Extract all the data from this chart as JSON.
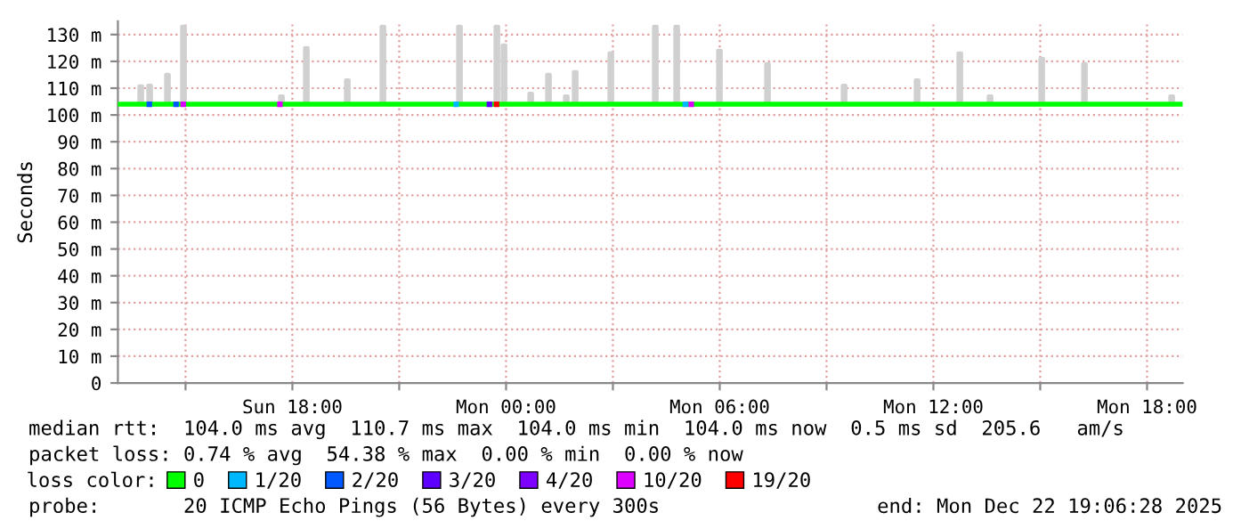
{
  "chart_data": {
    "type": "line",
    "ylabel": "Seconds",
    "legend_title": "loss color:",
    "legend": "bottom",
    "grid": true,
    "line_style": "solid",
    "xlim": [
      "2025-12-21T13:06",
      "2025-12-22T19:00"
    ],
    "xticks": [
      {
        "value": "2025-12-21T15:00",
        "label": null
      },
      {
        "value": "2025-12-21T18:00",
        "label": "Sun 18:00"
      },
      {
        "value": "2025-12-21T21:00",
        "label": null
      },
      {
        "value": "2025-12-22T00:00",
        "label": "Mon 00:00"
      },
      {
        "value": "2025-12-22T03:00",
        "label": null
      },
      {
        "value": "2025-12-22T06:00",
        "label": "Mon 06:00"
      },
      {
        "value": "2025-12-22T09:00",
        "label": null
      },
      {
        "value": "2025-12-22T12:00",
        "label": "Mon 12:00"
      },
      {
        "value": "2025-12-22T15:00",
        "label": null
      },
      {
        "value": "2025-12-22T18:00",
        "label": "Mon 18:00"
      }
    ],
    "ylim": [
      0,
      135
    ],
    "yticks": [
      0,
      {
        "value": 10,
        "label": "10 m"
      },
      {
        "value": 20,
        "label": "20 m"
      },
      {
        "value": 30,
        "label": "30 m"
      },
      {
        "value": 40,
        "label": "40 m"
      },
      {
        "value": 50,
        "label": "50 m"
      },
      {
        "value": 60,
        "label": "60 m"
      },
      {
        "value": 70,
        "label": "70 m"
      },
      {
        "value": 80,
        "label": "80 m"
      },
      {
        "value": 90,
        "label": "90 m"
      },
      {
        "value": 100,
        "label": "100 m"
      },
      {
        "value": 110,
        "label": "110 m"
      },
      {
        "value": 120,
        "label": "120 m"
      },
      {
        "value": 130,
        "label": "130 m"
      }
    ],
    "series": [
      {
        "type": "line",
        "color": "#d0d0d0",
        "x": [
          "2025-12-21T13:42",
          "2025-12-21T13:42",
          "2025-12-21T13:47",
          "2025-12-21T13:47",
          "2025-12-21T13:57",
          "2025-12-21T13:57",
          "2025-12-21T14:02",
          "2025-12-21T14:02",
          "2025-12-21T14:27",
          "2025-12-21T14:27",
          "2025-12-21T14:32",
          "2025-12-21T14:32",
          "2025-12-21T14:54",
          "2025-12-21T14:54",
          "2025-12-21T14:59",
          "2025-12-21T14:59",
          "2025-12-21T17:39",
          "2025-12-21T17:39",
          "2025-12-21T17:44",
          "2025-12-21T17:44",
          "2025-12-21T18:21",
          "2025-12-21T18:21",
          "2025-12-21T18:26",
          "2025-12-21T18:26",
          "2025-12-21T19:30",
          "2025-12-21T19:30",
          "2025-12-21T19:35",
          "2025-12-21T19:35",
          "2025-12-21T20:30",
          "2025-12-21T20:30",
          "2025-12-21T20:35",
          "2025-12-21T20:35",
          "2025-12-21T22:39",
          "2025-12-21T22:39",
          "2025-12-21T22:44",
          "2025-12-21T22:44",
          "2025-12-21T23:42",
          "2025-12-21T23:42",
          "2025-12-21T23:47",
          "2025-12-21T23:47",
          "2025-12-21T23:54",
          "2025-12-21T23:54",
          "2025-12-21T23:59",
          "2025-12-21T23:59",
          "2025-12-22T00:39",
          "2025-12-22T00:39",
          "2025-12-22T00:44",
          "2025-12-22T00:44",
          "2025-12-22T01:09",
          "2025-12-22T01:09",
          "2025-12-22T01:14",
          "2025-12-22T01:14",
          "2025-12-22T01:39",
          "2025-12-22T01:39",
          "2025-12-22T01:44",
          "2025-12-22T01:44",
          "2025-12-22T01:54",
          "2025-12-22T01:54",
          "2025-12-22T01:59",
          "2025-12-22T01:59",
          "2025-12-22T02:54",
          "2025-12-22T02:54",
          "2025-12-22T02:59",
          "2025-12-22T02:59",
          "2025-12-22T04:09",
          "2025-12-22T04:09",
          "2025-12-22T04:14",
          "2025-12-22T04:14",
          "2025-12-22T04:45",
          "2025-12-22T04:45",
          "2025-12-22T04:50",
          "2025-12-22T04:50",
          "2025-12-22T05:57",
          "2025-12-22T05:57",
          "2025-12-22T06:02",
          "2025-12-22T06:02",
          "2025-12-22T07:18",
          "2025-12-22T07:18",
          "2025-12-22T07:23",
          "2025-12-22T07:23",
          "2025-12-22T09:27",
          "2025-12-22T09:27",
          "2025-12-22T09:32",
          "2025-12-22T09:32",
          "2025-12-22T11:30",
          "2025-12-22T11:30",
          "2025-12-22T11:35",
          "2025-12-22T11:35",
          "2025-12-22T12:42",
          "2025-12-22T12:42",
          "2025-12-22T12:47",
          "2025-12-22T12:47",
          "2025-12-22T13:33",
          "2025-12-22T13:33",
          "2025-12-22T13:38",
          "2025-12-22T13:38",
          "2025-12-22T15:00",
          "2025-12-22T15:00",
          "2025-12-22T15:05",
          "2025-12-22T15:05",
          "2025-12-22T16:12",
          "2025-12-22T16:12",
          "2025-12-22T16:17",
          "2025-12-22T16:17",
          "2025-12-22T18:39",
          "2025-12-22T18:39",
          "2025-12-22T18:44",
          "2025-12-22T18:44"
        ],
        "values": [
          104,
          110.7,
          110.7,
          104,
          104,
          111,
          111,
          104,
          104,
          115,
          115,
          104,
          104,
          133,
          133,
          104,
          104,
          107,
          107,
          104,
          104,
          125,
          125,
          104,
          104,
          113,
          113,
          104,
          104,
          133,
          133,
          104,
          104,
          133,
          133,
          104,
          104,
          133,
          133,
          104,
          104,
          126,
          126,
          104,
          104,
          108,
          108,
          104,
          104,
          115,
          115,
          104,
          104,
          107,
          107,
          104,
          104,
          116,
          116,
          104,
          104,
          123,
          123,
          104,
          104,
          133,
          133,
          104,
          104,
          133,
          133,
          104,
          104,
          124,
          124,
          104,
          104,
          119,
          119,
          104,
          104,
          111,
          111,
          104,
          104,
          113,
          113,
          104,
          104,
          123,
          123,
          104,
          104,
          107,
          107,
          104,
          104,
          121,
          121,
          104,
          104,
          119,
          119,
          104,
          104,
          107,
          107,
          104
        ]
      },
      {
        "name": "0",
        "color": "#00ff00",
        "x": [
          "2025-12-21T13:06",
          "2025-12-22T19:00"
        ],
        "values": [
          104,
          104
        ]
      },
      {
        "type": "scatter",
        "name": "1/20",
        "color": "#00b8ff",
        "marker": "square",
        "x": [
          "2025-12-21T22:36",
          "2025-12-22T05:02"
        ],
        "values": [
          104,
          104
        ]
      },
      {
        "type": "scatter",
        "name": "2/20",
        "color": "#0059ff",
        "marker": "square",
        "x": [
          "2025-12-21T13:59",
          "2025-12-21T14:44"
        ],
        "values": [
          104,
          104
        ]
      },
      {
        "type": "scatter",
        "name": "3/20",
        "color": "#5e00ff",
        "marker": "square",
        "x": [
          "2025-12-21T23:32"
        ],
        "values": [
          104
        ]
      },
      {
        "type": "scatter",
        "name": "4/20",
        "color": "#7e00ff",
        "marker": "square"
      },
      {
        "type": "scatter",
        "name": "10/20",
        "color": "#dd00ff",
        "marker": "square",
        "x": [
          "2025-12-21T14:56",
          "2025-12-21T17:39",
          "2025-12-22T05:12"
        ],
        "values": [
          104,
          104,
          104
        ]
      },
      {
        "type": "scatter",
        "name": "19/20",
        "color": "#ff0000",
        "marker": "square",
        "x": [
          "2025-12-21T23:44"
        ],
        "values": [
          104
        ]
      }
    ],
    "annotations": [
      "median rtt:  104.0 ms avg  110.7 ms max  104.0 ms min  104.0 ms now  0.5 ms sd  205.6   am/s",
      "packet loss: 0.74 % avg  54.38 % max  0.00 % min  0.00 % now",
      "probe:       20 ICMP Echo Pings (56 Bytes) every 300s",
      "end: Mon Dec 22 19:06:28 2025"
    ]
  }
}
